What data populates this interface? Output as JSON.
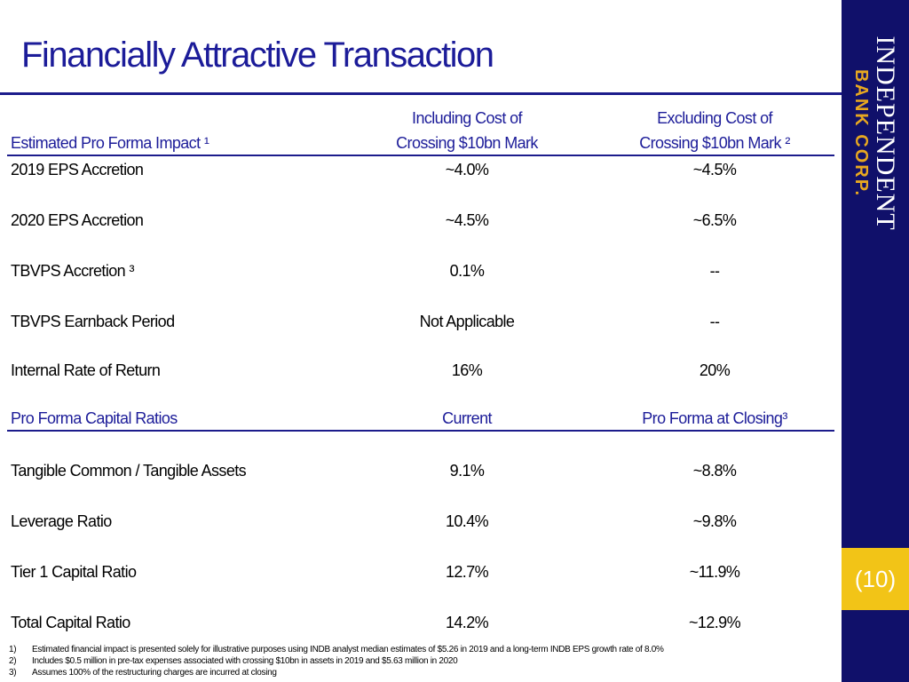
{
  "slide": {
    "title": "Financially Attractive Transaction",
    "page_number": "(10)"
  },
  "brand": {
    "line1": "INDEPENDENT",
    "line2": "BANK CORP."
  },
  "table1": {
    "header_col1": "Estimated Pro Forma Impact ¹",
    "header_col2_line1": "Including Cost of",
    "header_col2_line2": "Crossing $10bn Mark",
    "header_col3_line1": "Excluding Cost of",
    "header_col3_line2": "Crossing $10bn Mark ²",
    "rows": [
      {
        "label": "2019 EPS Accretion",
        "incl": "~4.0%",
        "excl": "~4.5%"
      },
      {
        "label": "2020 EPS Accretion",
        "incl": "~4.5%",
        "excl": "~6.5%"
      },
      {
        "label": "TBVPS Accretion ³",
        "incl": "0.1%",
        "excl": "--"
      },
      {
        "label": "TBVPS Earnback Period",
        "incl": "Not Applicable",
        "excl": "--"
      },
      {
        "label": "Internal Rate of Return",
        "incl": "16%",
        "excl": "20%"
      }
    ]
  },
  "table2": {
    "header_col1": "Pro Forma Capital Ratios",
    "header_col2": "Current",
    "header_col3": "Pro Forma at Closing³",
    "rows": [
      {
        "label": "Tangible Common / Tangible Assets",
        "current": "9.1%",
        "pro_forma": "~8.8%"
      },
      {
        "label": "Leverage Ratio",
        "current": "10.4%",
        "pro_forma": "~9.8%"
      },
      {
        "label": "Tier 1 Capital Ratio",
        "current": "12.7%",
        "pro_forma": "~11.9%"
      },
      {
        "label": "Total Capital Ratio",
        "current": "14.2%",
        "pro_forma": "~12.9%"
      }
    ]
  },
  "footnotes": [
    {
      "num": "1)",
      "text": "Estimated financial impact is presented solely for illustrative purposes using INDB analyst median estimates of $5.26 in 2019 and a long-term INDB EPS growth rate of 8.0%"
    },
    {
      "num": "2)",
      "text": "Includes $0.5 million in pre-tax expenses associated with crossing $10bn in assets in 2019 and $5.63 million in 2020"
    },
    {
      "num": "3)",
      "text": "Assumes 100% of the restructuring charges are incurred at closing"
    }
  ]
}
